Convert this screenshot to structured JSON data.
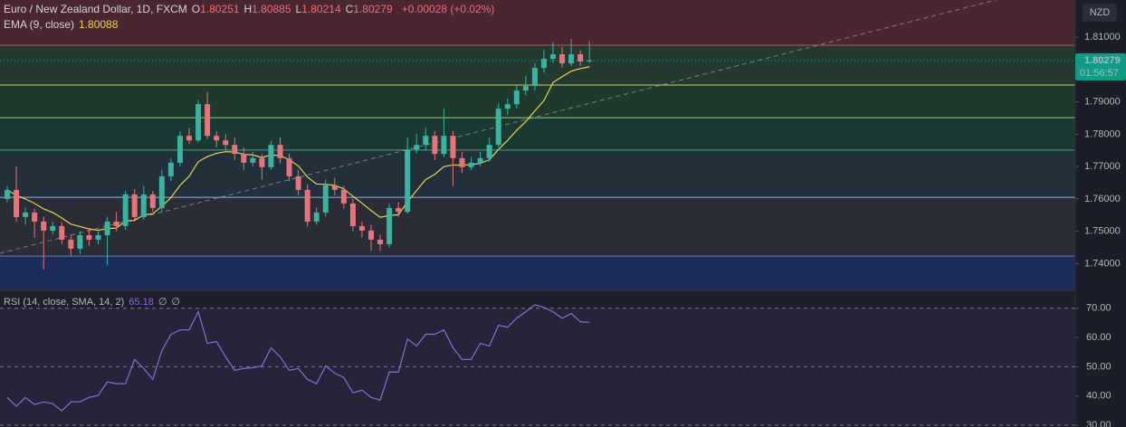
{
  "chart_data": [
    {
      "type": "candlestick",
      "title": "Euro / New Zealand Dollar, 1D, FXCM",
      "ohlc_labels": [
        {
          "key": "O",
          "value": "1.80251"
        },
        {
          "key": "H",
          "value": "1.80885"
        },
        {
          "key": "L",
          "value": "1.80214"
        },
        {
          "key": "C",
          "value": "1.80279"
        }
      ],
      "change": "+0.00028 (+0.02%)",
      "currency": "NZD",
      "countdown": "01:56:57",
      "up_color": "#3bb3a1",
      "down_color": "#e8737b",
      "open": [
        1.76,
        1.7628,
        1.7544,
        1.7558,
        1.753,
        1.7502,
        1.7516,
        1.7474,
        1.7446,
        1.7488,
        1.7474,
        1.7488,
        1.753,
        1.7516,
        1.7614,
        1.7544,
        1.7614,
        1.7572,
        1.767,
        1.7712,
        1.7795,
        1.7781,
        1.7893,
        1.7795,
        1.7781,
        1.7767,
        1.7739,
        1.7712,
        1.7726,
        1.7698,
        1.7767,
        1.7726,
        1.767,
        1.7628,
        1.753,
        1.7558,
        1.7642,
        1.7628,
        1.7586,
        1.7516,
        1.7502,
        1.7474,
        1.746,
        1.7572,
        1.756,
        1.7753,
        1.7767,
        1.7795,
        1.7739,
        1.7795,
        1.7726,
        1.7698,
        1.7712,
        1.7726,
        1.7767,
        1.7879,
        1.7893,
        1.7935,
        1.7949,
        1.8005,
        1.8033,
        1.8047,
        1.8019,
        1.8047,
        1.80251
      ],
      "high": [
        1.764,
        1.77,
        1.7575,
        1.757,
        1.7545,
        1.753,
        1.7528,
        1.749,
        1.75,
        1.751,
        1.75,
        1.7545,
        1.756,
        1.7625,
        1.763,
        1.764,
        1.7625,
        1.769,
        1.7725,
        1.781,
        1.782,
        1.7905,
        1.793,
        1.781,
        1.78,
        1.779,
        1.776,
        1.7745,
        1.774,
        1.778,
        1.779,
        1.774,
        1.769,
        1.7645,
        1.7575,
        1.766,
        1.7665,
        1.764,
        1.76,
        1.753,
        1.752,
        1.749,
        1.7585,
        1.759,
        1.779,
        1.78,
        1.782,
        1.781,
        1.788,
        1.781,
        1.7745,
        1.773,
        1.7745,
        1.779,
        1.7895,
        1.791,
        1.795,
        1.798,
        1.802,
        1.806,
        1.8085,
        1.807,
        1.8095,
        1.806,
        1.80885
      ],
      "low": [
        1.759,
        1.753,
        1.752,
        1.748,
        1.7382,
        1.749,
        1.746,
        1.7425,
        1.743,
        1.7455,
        1.746,
        1.7395,
        1.75,
        1.7505,
        1.753,
        1.7535,
        1.756,
        1.756,
        1.7655,
        1.77,
        1.777,
        1.7775,
        1.7785,
        1.776,
        1.775,
        1.772,
        1.769,
        1.77,
        1.766,
        1.769,
        1.771,
        1.7655,
        1.761,
        1.7515,
        1.752,
        1.7545,
        1.761,
        1.757,
        1.75,
        1.748,
        1.744,
        1.744,
        1.745,
        1.7545,
        1.7555,
        1.774,
        1.775,
        1.772,
        1.773,
        1.764,
        1.768,
        1.769,
        1.77,
        1.7715,
        1.776,
        1.786,
        1.788,
        1.792,
        1.7935,
        1.799,
        1.802,
        1.8005,
        1.801,
        1.801,
        1.80214
      ],
      "close": [
        1.7628,
        1.7544,
        1.7558,
        1.753,
        1.7502,
        1.7516,
        1.7474,
        1.7446,
        1.7488,
        1.7474,
        1.7488,
        1.753,
        1.7516,
        1.7614,
        1.7544,
        1.7614,
        1.7572,
        1.767,
        1.7712,
        1.7795,
        1.7781,
        1.7893,
        1.7795,
        1.7781,
        1.7767,
        1.7739,
        1.7712,
        1.7726,
        1.7698,
        1.7767,
        1.7726,
        1.767,
        1.7628,
        1.753,
        1.7558,
        1.7642,
        1.7628,
        1.7586,
        1.7516,
        1.7502,
        1.7474,
        1.746,
        1.7572,
        1.756,
        1.7753,
        1.7767,
        1.7795,
        1.7739,
        1.7795,
        1.7726,
        1.7698,
        1.7712,
        1.7726,
        1.7767,
        1.7879,
        1.7893,
        1.7935,
        1.7949,
        1.8005,
        1.8033,
        1.8047,
        1.8019,
        1.8047,
        1.8025,
        1.80279
      ],
      "overlay": {
        "name": "EMA (9, close)",
        "value_label": "1.80088",
        "color": "#e8d44d",
        "values": [
          1.7628,
          1.7611,
          1.76,
          1.7586,
          1.7569,
          1.7558,
          1.7541,
          1.7522,
          1.7515,
          1.7507,
          1.7503,
          1.7508,
          1.751,
          1.7531,
          1.7534,
          1.755,
          1.7554,
          1.7577,
          1.7604,
          1.7642,
          1.767,
          1.7715,
          1.7731,
          1.7741,
          1.7746,
          1.7745,
          1.7738,
          1.7736,
          1.7728,
          1.7736,
          1.7734,
          1.7721,
          1.7702,
          1.7668,
          1.7646,
          1.7645,
          1.7642,
          1.7631,
          1.7608,
          1.7587,
          1.7564,
          1.7543,
          1.7549,
          1.7551,
          1.7591,
          1.7626,
          1.766,
          1.7676,
          1.77,
          1.7705,
          1.7704,
          1.7706,
          1.771,
          1.7721,
          1.7753,
          1.7781,
          1.7812,
          1.7839,
          1.7872,
          1.7904,
          1.796,
          1.7978,
          1.7995,
          1.8003,
          1.80088
        ]
      },
      "last_price": {
        "value": 1.80279,
        "label": "1.80279",
        "color": "#0e9c86"
      },
      "top_fill": "#4a2631",
      "levels": [
        {
          "value": 1.8075,
          "color": "#c0505e",
          "fill": "#243a30"
        },
        {
          "value": 1.7952,
          "color": "#c8cc6a",
          "fill": "#1f3a2c"
        },
        {
          "value": 1.7851,
          "color": "#8fcf7a",
          "fill": "#1b3833"
        },
        {
          "value": 1.7751,
          "color": "#3aa58f",
          "fill": "#22303c"
        },
        {
          "value": 1.7605,
          "color": "#8fb2e0",
          "fill": "#2a2c36"
        },
        {
          "value": 1.7423,
          "color": "#5a7cc8",
          "fill": "#1d2d5a"
        }
      ],
      "ylim": [
        1.732,
        1.8215
      ],
      "yticks": [
        {
          "value": 1.81,
          "label": "1.81000"
        },
        {
          "value": 1.79,
          "label": "1.79000"
        },
        {
          "value": 1.78,
          "label": "1.78000"
        },
        {
          "value": 1.77,
          "label": "1.77000"
        },
        {
          "value": 1.76,
          "label": "1.76000"
        },
        {
          "value": 1.75,
          "label": "1.75000"
        },
        {
          "value": 1.74,
          "label": "1.74000"
        }
      ]
    },
    {
      "type": "line",
      "title": "RSI (14, close, SMA, 14, 2)",
      "value_label": "65.18",
      "extra_labels": [
        "∅",
        "∅"
      ],
      "color": "#8c6ad6",
      "values": [
        39.5,
        36.5,
        39.5,
        37.1,
        38.0,
        37.4,
        34.9,
        38.0,
        38.0,
        39.5,
        40.2,
        44.8,
        44.2,
        44.2,
        52.5,
        49.4,
        45.7,
        55.5,
        61.1,
        62.6,
        62.6,
        68.8,
        58.0,
        58.6,
        53.4,
        48.8,
        49.4,
        49.7,
        50.3,
        56.5,
        53.4,
        48.8,
        49.4,
        45.7,
        44.2,
        50.3,
        47.8,
        46.3,
        41.1,
        42.0,
        39.5,
        38.6,
        48.2,
        48.2,
        59.5,
        57.1,
        61.1,
        61.1,
        62.6,
        56.5,
        52.5,
        52.5,
        58.0,
        57.1,
        64.2,
        63.5,
        66.6,
        68.8,
        71.2,
        70.3,
        68.8,
        66.6,
        68.2,
        65.4,
        65.18
      ],
      "reference_lines": [
        70,
        50,
        30
      ],
      "ylim": [
        29.4,
        75.8
      ],
      "yticks": [
        {
          "value": 70,
          "label": "70.00"
        },
        {
          "value": 60,
          "label": "60.00"
        },
        {
          "value": 50,
          "label": "50.00"
        },
        {
          "value": 40,
          "label": "40.00"
        },
        {
          "value": 30,
          "label": "30.00"
        }
      ]
    }
  ]
}
